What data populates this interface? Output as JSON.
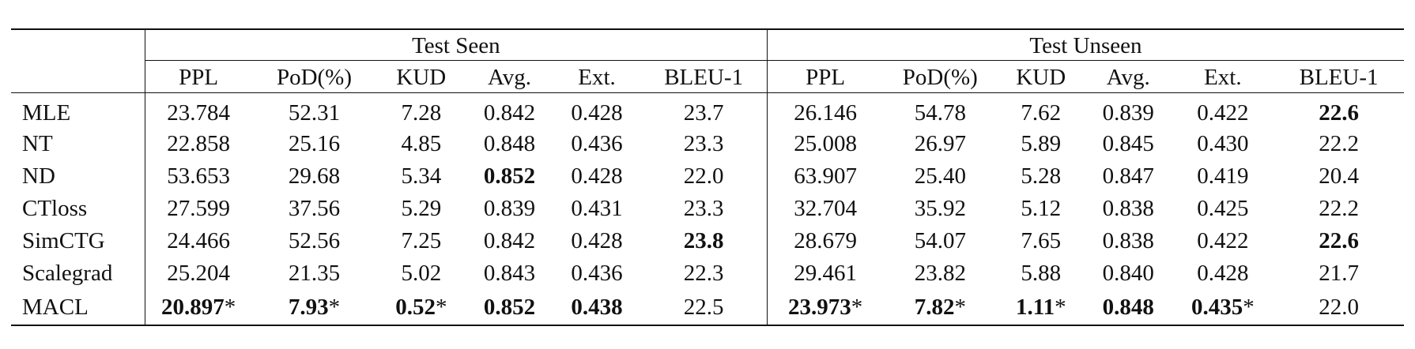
{
  "table": {
    "groups": [
      "Test Seen",
      "Test Unseen"
    ],
    "columns": [
      "PPL",
      "PoD(%)",
      "KUD",
      "Avg.",
      "Ext.",
      "BLEU-1",
      "PPL",
      "PoD(%)",
      "KUD",
      "Avg.",
      "Ext.",
      "BLEU-1"
    ],
    "rows": [
      {
        "method": "MLE",
        "cells": [
          {
            "v": "23.784"
          },
          {
            "v": "52.31"
          },
          {
            "v": "7.28"
          },
          {
            "v": "0.842"
          },
          {
            "v": "0.428"
          },
          {
            "v": "23.7"
          },
          {
            "v": "26.146"
          },
          {
            "v": "54.78"
          },
          {
            "v": "7.62"
          },
          {
            "v": "0.839"
          },
          {
            "v": "0.422"
          },
          {
            "v": "22.6",
            "bold": true
          }
        ]
      },
      {
        "method": "NT",
        "cells": [
          {
            "v": "22.858"
          },
          {
            "v": "25.16"
          },
          {
            "v": "4.85"
          },
          {
            "v": "0.848"
          },
          {
            "v": "0.436"
          },
          {
            "v": "23.3"
          },
          {
            "v": "25.008"
          },
          {
            "v": "26.97"
          },
          {
            "v": "5.89"
          },
          {
            "v": "0.845"
          },
          {
            "v": "0.430"
          },
          {
            "v": "22.2"
          }
        ]
      },
      {
        "method": "ND",
        "cells": [
          {
            "v": "53.653"
          },
          {
            "v": "29.68"
          },
          {
            "v": "5.34"
          },
          {
            "v": "0.852",
            "bold": true
          },
          {
            "v": "0.428"
          },
          {
            "v": "22.0"
          },
          {
            "v": "63.907"
          },
          {
            "v": "25.40"
          },
          {
            "v": "5.28"
          },
          {
            "v": "0.847"
          },
          {
            "v": "0.419"
          },
          {
            "v": "20.4"
          }
        ]
      },
      {
        "method": "CTloss",
        "cells": [
          {
            "v": "27.599"
          },
          {
            "v": "37.56"
          },
          {
            "v": "5.29"
          },
          {
            "v": "0.839"
          },
          {
            "v": "0.431"
          },
          {
            "v": "23.3"
          },
          {
            "v": "32.704"
          },
          {
            "v": "35.92"
          },
          {
            "v": "5.12"
          },
          {
            "v": "0.838"
          },
          {
            "v": "0.425"
          },
          {
            "v": "22.2"
          }
        ]
      },
      {
        "method": "SimCTG",
        "cells": [
          {
            "v": "24.466"
          },
          {
            "v": "52.56"
          },
          {
            "v": "7.25"
          },
          {
            "v": "0.842"
          },
          {
            "v": "0.428"
          },
          {
            "v": "23.8",
            "bold": true
          },
          {
            "v": "28.679"
          },
          {
            "v": "54.07"
          },
          {
            "v": "7.65"
          },
          {
            "v": "0.838"
          },
          {
            "v": "0.422"
          },
          {
            "v": "22.6",
            "bold": true
          }
        ]
      },
      {
        "method": "Scalegrad",
        "cells": [
          {
            "v": "25.204"
          },
          {
            "v": "21.35"
          },
          {
            "v": "5.02"
          },
          {
            "v": "0.843"
          },
          {
            "v": "0.436"
          },
          {
            "v": "22.3"
          },
          {
            "v": "29.461"
          },
          {
            "v": "23.82"
          },
          {
            "v": "5.88"
          },
          {
            "v": "0.840"
          },
          {
            "v": "0.428"
          },
          {
            "v": "21.7"
          }
        ]
      },
      {
        "method": "MACL",
        "cells": [
          {
            "v": "20.897",
            "bold": true,
            "star": "*"
          },
          {
            "v": "7.93",
            "bold": true,
            "star": "*"
          },
          {
            "v": "0.52",
            "bold": true,
            "star": "*"
          },
          {
            "v": "0.852",
            "bold": true
          },
          {
            "v": "0.438",
            "bold": true
          },
          {
            "v": "22.5"
          },
          {
            "v": "23.973",
            "bold": true,
            "star": "*"
          },
          {
            "v": "7.82",
            "bold": true,
            "star": "*"
          },
          {
            "v": "1.11",
            "bold": true,
            "star": "*"
          },
          {
            "v": "0.848",
            "bold": true
          },
          {
            "v": "0.435",
            "bold": true,
            "star": "*"
          },
          {
            "v": "22.0"
          }
        ]
      }
    ]
  }
}
